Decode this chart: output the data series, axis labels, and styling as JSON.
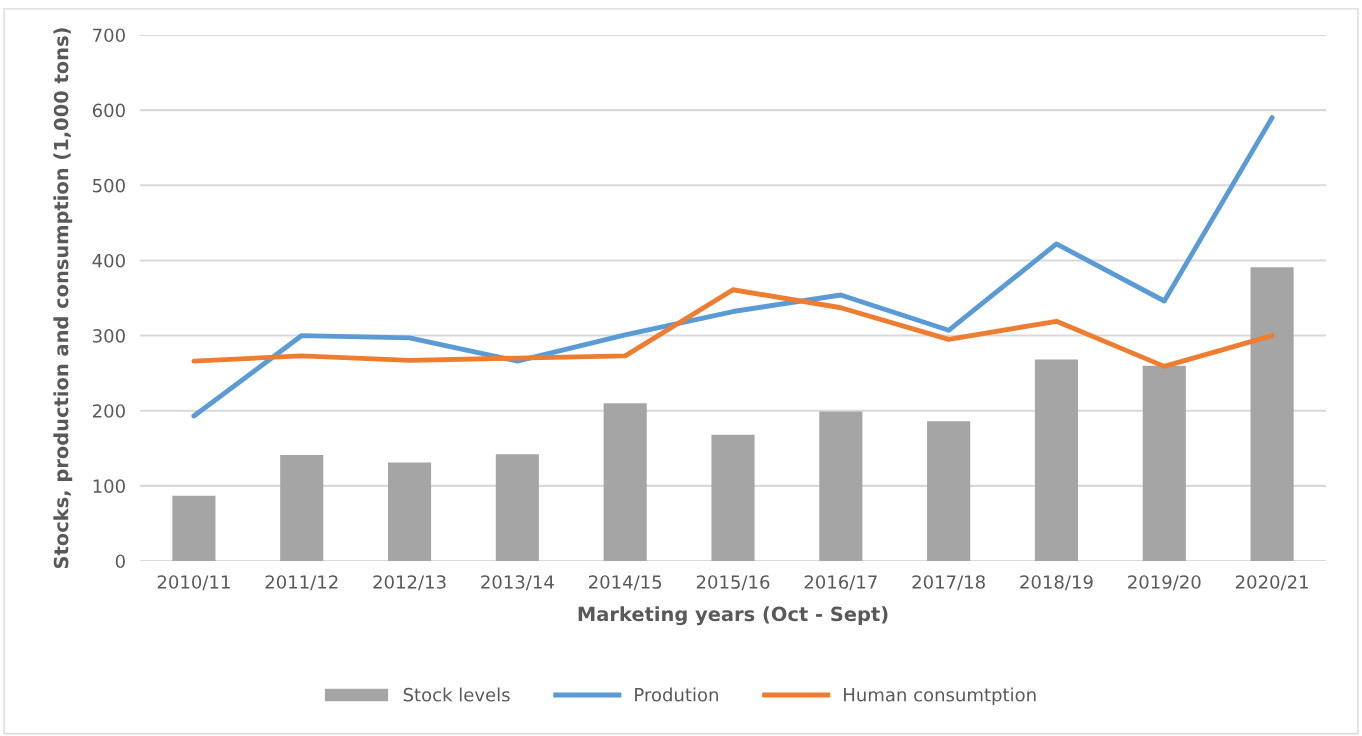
{
  "chart_data": {
    "type": "bar",
    "xlabel": "Marketing years (Oct - Sept)",
    "ylabel": "Stocks, production and consumption (1,000 tons)",
    "categories": [
      "2010/11",
      "2011/12",
      "2012/13",
      "2013/14",
      "2014/15",
      "2015/16",
      "2016/17",
      "2017/18",
      "2018/19",
      "2019/20",
      "2020/21"
    ],
    "series": [
      {
        "name": "Stock levels",
        "color": "#a5a5a5",
        "values": [
          87,
          141,
          131,
          142,
          210,
          168,
          199,
          186,
          268,
          260,
          391
        ]
      },
      {
        "name": "Prodution",
        "type": "line",
        "color": "#5b9bd5",
        "values": [
          193,
          300,
          297,
          266,
          301,
          332,
          354,
          307,
          422,
          346,
          590
        ]
      },
      {
        "name": "Human consumtption",
        "type": "line",
        "color": "#ed7d31",
        "values": [
          266,
          273,
          267,
          270,
          273,
          361,
          337,
          295,
          319,
          259,
          300
        ]
      }
    ],
    "ylim": [
      0,
      700
    ],
    "yticks": [
      0,
      100,
      200,
      300,
      400,
      500,
      600,
      700
    ],
    "grid": "y",
    "legend": "bottom"
  }
}
